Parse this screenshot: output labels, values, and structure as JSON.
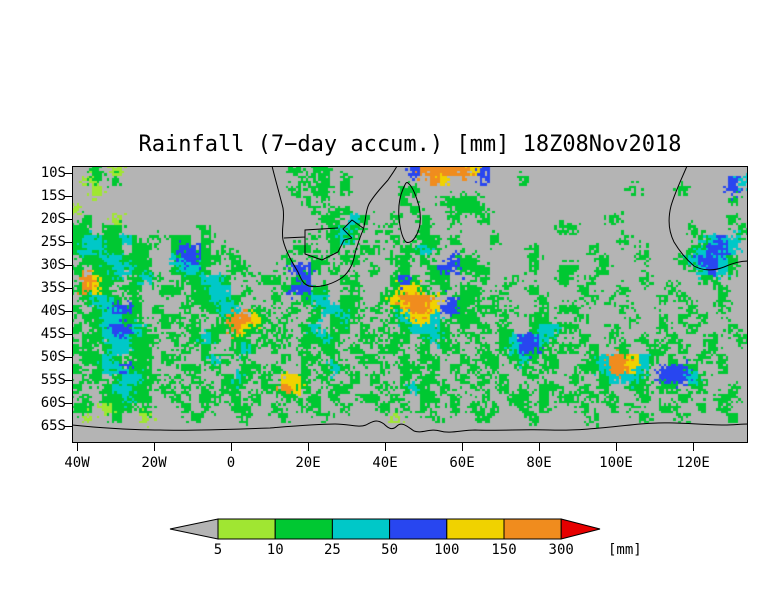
{
  "chart_data": {
    "type": "heatmap",
    "title": "Rainfall (7−day accum.) [mm] 18Z08Nov2018",
    "x_tick_labels": [
      "40W",
      "20W",
      "0",
      "20E",
      "40E",
      "60E",
      "80E",
      "100E",
      "120E"
    ],
    "y_tick_labels": [
      "10S",
      "15S",
      "20S",
      "25S",
      "30S",
      "35S",
      "40S",
      "45S",
      "50S",
      "55S",
      "60S",
      "65S"
    ],
    "levels_mm": [
      5,
      10,
      25,
      50,
      100,
      150,
      300
    ],
    "palette": [
      "#b4b4b4",
      "#a0e632",
      "#00c832",
      "#00c8c8",
      "#2846f0",
      "#f0d200",
      "#f08c1e",
      "#e60000"
    ],
    "palette_bins": [
      "<5",
      "5-10",
      "10-25",
      "25-50",
      "50-100",
      "100-150",
      "150-300",
      ">300"
    ],
    "grid_encoding": "28 rows (north ~8.5S to south ~68.5S) x 68 cols (~41W to ~134E); each char is a palette index, '.' = 0 (<5 mm); row stored as chunks to join",
    "grid_rows": [
      [
        "..2.1.....",
        "..........",
        "..2.22....",
        "....466666",
        "54........",
        "..........",
        "........"
      ],
      [
        ".12.2.....",
        "..........",
        "...2.2.2..",
        "......65..",
        ".4...2....",
        "..........",
        "......43"
      ],
      [
        "..1.......",
        "..........",
        "..2.22.2..",
        "...22.....",
        "..........",
        "......2...",
        ".2....4."
      ],
      [
        "..........",
        "..........",
        "...2.2....",
        "...2...222",
        "2.........",
        "..........",
        "......2."
      ],
      [
        "1.........",
        "..........",
        "....2.22..",
        "....2...22",
        "22........",
        "..........",
        "........"
      ],
      [
        ".2..1.....",
        "..........",
        ".....22.32",
        "..2..2..2.",
        ".2........",
        "....2.....",
        "......2."
      ],
      [
        "22.22.....",
        "...2......",
        "......232.",
        ".2...2....",
        ".........2",
        "2.........",
        "..2....2"
      ],
      [
        "2332232.2.",
        "22.2......",
        "....2.232.",
        "..2..22.2.",
        "..2.......",
        ".....2....",
        "...2343."
      ],
      [
        "23322.22..",
        "2442.2....",
        "..22..2..2",
        "2..2232...",
        "......2...",
        "..2....2..",
        "..23443."
      ],
      [
        ".2233222..",
        "34422.2...",
        ".2..22.22.",
        "..22.2..42",
        "2.....2...",
        "...2...2..",
        ".234432."
      ],
      [
        "2.223322..",
        "2332..22..",
        "..442.2...",
        "2..2..2442",
        "22....2..2",
        "2..2......",
        "..23432."
      ],
      [
        ".6522.232.",
        ".22332...2",
        "2.24...22.",
        "..242.22..",
        ".2..2....2",
        "..2....2..",
        "...22..."
      ],
      [
        "2652.22..2",
        "2.2233.2..",
        ".24422..2.",
        "..2552.2.2",
        "2..2..2...",
        ".2...2....",
        "2....2.."
      ],
      [
        ".2332.2...",
        "..22332...",
        "2..233.22.",
        ".256665.42",
        "2.2....2..",
        "..2.2....2",
        ".2...2.."
      ],
      [
        "2.23442.2.",
        ".2.2233.2.",
        "..2.23322.",
        "2.25665442",
        ".22.2..2.2",
        "2....2....",
        "..2..2.."
      ],
      [
        ".223322..2",
        "2.2..26652",
        ".2..2.232.",
        "..23553.22",
        "2..2..22..",
        ".2....2..2",
        ".2.2...."
      ],
      [
        "2.234432.2",
        ".22.22652.",
        "2..23.22.2",
        ".2.23332.2",
        ".2.2..2332",
        "2...2....2",
        "..2...2."
      ],
      [
        ".22333222.",
        "2.232.22.2",
        ".2.2232..2",
        "2.22.232..",
        "2..234432.",
        ".2..2..2..",
        "2...2..2"
      ],
      [
        "22.23322..",
        ".2.2..232.",
        "2..2.22.2.",
        ".22..2.22.",
        ".2.23442.2",
        "2.2..2..22",
        ".2..2..."
      ],
      [
        ".2232.22.2",
        "2..232.2..",
        ".2.22.2..2",
        "2..2.22..2",
        ".22.232.2.",
        "..2366532.",
        "2..2.2.."
      ],
      [
        "2.233422..",
        ".22.2..22.",
        "2..2.232..",
        ".2.22.2.2.",
        "2.2..2.22.",
        ".2236653.4",
        "442..2.."
      ],
      [
        ".22.23322.",
        "2.2..232.2",
        ".552.2..2.",
        "2..2.22..2",
        ".2.2..2...",
        "2..23332.4",
        "4432...."
      ],
      [
        "2..23322.2",
        ".2.2.22..2",
        "2652..22..",
        ".2.232.2..",
        "2..2.2.22.",
        ".2.2..22.2",
        "2.22..2."
      ],
      [
        ".2.22322..",
        "2..22.2.2.",
        ".22.2.2..2",
        "2.2..22.2.",
        ".2..22.2.2",
        "2.2.2..2..",
        ".2...22."
      ],
      [
        "22.122.2..",
        ".2.2..22..",
        "2..22..2..",
        ".2.2.2..2.",
        "2.2..2.2..",
        ".2..2.2..2",
        "2..2.2.."
      ],
      [
        ".1..2..1..",
        "..2....2..",
        ".2...2....",
        "..1...2...",
        ".2....2...",
        "..2....2..",
        ".2....2."
      ],
      [
        "..........",
        "..........",
        "..........",
        "..........",
        "..........",
        "..........",
        "........"
      ],
      [
        "..........",
        "..........",
        "..........",
        "..........",
        "..........",
        "..........",
        "........"
      ]
    ]
  },
  "colorbar": {
    "tick_labels": [
      "5",
      "10",
      "25",
      "50",
      "100",
      "150",
      "300"
    ],
    "units_label": "[mm]"
  }
}
